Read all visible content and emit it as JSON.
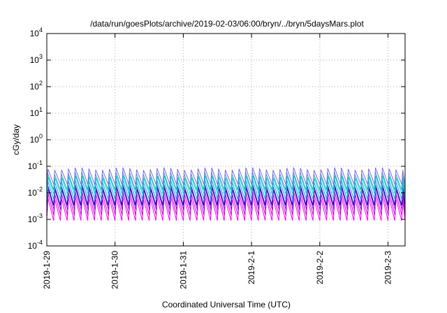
{
  "chart_data": {
    "type": "line",
    "title": "/data/run/goesPlots/archive/2019-02-03/06:00/bryn/../bryn/5daysMars.plot",
    "xlabel": "Coordinated Universal Time (UTC)",
    "ylabel": "cGy/day",
    "yscale": "log",
    "ylim": [
      0.0001,
      10000
    ],
    "y_ticks": [
      {
        "base": "10",
        "exp": "-4"
      },
      {
        "base": "10",
        "exp": "-3"
      },
      {
        "base": "10",
        "exp": "-2"
      },
      {
        "base": "10",
        "exp": "-1"
      },
      {
        "base": "10",
        "exp": "0"
      },
      {
        "base": "10",
        "exp": "1"
      },
      {
        "base": "10",
        "exp": "2"
      },
      {
        "base": "10",
        "exp": "3"
      },
      {
        "base": "10",
        "exp": "4"
      }
    ],
    "x_ticks": [
      "2019-1-29",
      "2019-1-30",
      "2019-1-31",
      "2019-2-1",
      "2019-2-2",
      "2019-2-3"
    ],
    "xlim": [
      "2019-01-29 00:00",
      "2019-02-03 06:00"
    ],
    "grid": true,
    "pattern": {
      "description": "periodic sawtooth, approx. 10 cycles per day",
      "cycles_per_day": 10,
      "series_count": 8,
      "peak_range": [
        0.008,
        0.09
      ],
      "trough_range": [
        0.0009,
        0.02
      ]
    },
    "series_colors": [
      "#ff00ff",
      "#cc00cc",
      "#9400d3",
      "#0000cd",
      "#1e90ff",
      "#00ced1",
      "#20b2aa",
      "#7b68ee"
    ]
  }
}
